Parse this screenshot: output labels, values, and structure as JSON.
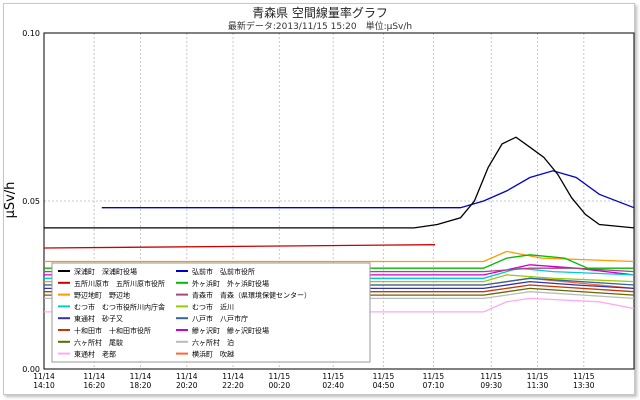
{
  "chart_data": {
    "type": "line",
    "title": "青森県 空間線量率グラフ",
    "subtitle": "最新データ:2013/11/15 15:20　単位:μSv/h",
    "ylabel": "μSv/h",
    "xlabel": "",
    "ylim": [
      0.0,
      0.1
    ],
    "xlim": [
      0,
      25.5
    ],
    "yticks": [
      "0.00",
      "0.05",
      "0.10"
    ],
    "xticks": [
      {
        "x": 0,
        "date": "11/14",
        "time": "14:10"
      },
      {
        "x": 2.17,
        "date": "11/14",
        "time": "16:20"
      },
      {
        "x": 4.17,
        "date": "11/14",
        "time": "18:20"
      },
      {
        "x": 6.17,
        "date": "11/14",
        "time": "20:20"
      },
      {
        "x": 8.17,
        "date": "11/14",
        "time": "22:20"
      },
      {
        "x": 10.17,
        "date": "11/15",
        "time": "00:20"
      },
      {
        "x": 12.5,
        "date": "11/15",
        "time": "02:40"
      },
      {
        "x": 14.67,
        "date": "11/15",
        "time": "04:50"
      },
      {
        "x": 16.83,
        "date": "11/15",
        "time": "07:10"
      },
      {
        "x": 19.33,
        "date": "11/15",
        "time": "09:30"
      },
      {
        "x": 21.33,
        "date": "11/15",
        "time": "11:30"
      },
      {
        "x": 23.33,
        "date": "11/15",
        "time": "13:30"
      }
    ],
    "grid": true,
    "legend_position": "bottom-left",
    "series": [
      {
        "name": "深浦町　深浦町役場",
        "color": "#000000",
        "points": [
          [
            0,
            0.042
          ],
          [
            16,
            0.042
          ],
          [
            17,
            0.043
          ],
          [
            18,
            0.045
          ],
          [
            18.6,
            0.05
          ],
          [
            19.2,
            0.06
          ],
          [
            19.8,
            0.067
          ],
          [
            20.4,
            0.069
          ],
          [
            21,
            0.066
          ],
          [
            21.6,
            0.063
          ],
          [
            22.2,
            0.058
          ],
          [
            22.8,
            0.051
          ],
          [
            23.4,
            0.046
          ],
          [
            24,
            0.043
          ],
          [
            25.5,
            0.042
          ]
        ]
      },
      {
        "name": "弘前市　弘前市役所",
        "color": "#0000cc",
        "points": [
          [
            2.5,
            0.048
          ],
          [
            17,
            0.048
          ],
          [
            18,
            0.048
          ],
          [
            19,
            0.05
          ],
          [
            20,
            0.053
          ],
          [
            21,
            0.057
          ],
          [
            22,
            0.059
          ],
          [
            23,
            0.057
          ],
          [
            24,
            0.052
          ],
          [
            25.5,
            0.048
          ]
        ]
      },
      {
        "name": "五所川原市　五所川原市役所",
        "color": "#cc0000",
        "points": [
          [
            0,
            0.036
          ],
          [
            16.9,
            0.037
          ]
        ]
      },
      {
        "name": "外ヶ浜町　外ヶ浜町役場",
        "color": "#00bb00",
        "points": [
          [
            0,
            0.03
          ],
          [
            19,
            0.03
          ],
          [
            20,
            0.033
          ],
          [
            21,
            0.034
          ],
          [
            22.5,
            0.033
          ],
          [
            23.5,
            0.03
          ],
          [
            25.5,
            0.03
          ]
        ]
      },
      {
        "name": "野辺地町　野辺地",
        "color": "#ff9900",
        "points": [
          [
            0,
            0.032
          ],
          [
            12,
            0.032
          ],
          [
            19,
            0.032
          ],
          [
            20,
            0.035
          ],
          [
            21.5,
            0.033
          ],
          [
            25.5,
            0.032
          ]
        ]
      },
      {
        "name": "青森市　青森（県環境保健センター）",
        "color": "#aa4488",
        "points": [
          [
            0,
            0.029
          ],
          [
            19,
            0.029
          ],
          [
            21,
            0.03
          ],
          [
            23,
            0.03
          ],
          [
            25.5,
            0.029
          ]
        ]
      },
      {
        "name": "むつ市　むつ市役所川内庁舎",
        "color": "#00cccc",
        "points": [
          [
            0,
            0.027
          ],
          [
            19,
            0.027
          ],
          [
            20.5,
            0.03
          ],
          [
            22,
            0.029
          ],
          [
            25.5,
            0.028
          ]
        ]
      },
      {
        "name": "むつ市　近川",
        "color": "#99cc00",
        "points": [
          [
            0,
            0.026
          ],
          [
            19,
            0.026
          ],
          [
            20,
            0.028
          ],
          [
            22,
            0.027
          ],
          [
            25.5,
            0.026
          ]
        ]
      },
      {
        "name": "東通村　砂子又",
        "color": "#3333aa",
        "points": [
          [
            0,
            0.024
          ],
          [
            19,
            0.024
          ],
          [
            21,
            0.026
          ],
          [
            23,
            0.025
          ],
          [
            25.5,
            0.024
          ]
        ]
      },
      {
        "name": "八戸市　八戸市庁",
        "color": "#336699",
        "points": [
          [
            0,
            0.025
          ],
          [
            19,
            0.025
          ],
          [
            21,
            0.027
          ],
          [
            25.5,
            0.025
          ]
        ]
      },
      {
        "name": "十和田市　十和田市役所",
        "color": "#cc3300",
        "points": [
          [
            0,
            0.023
          ],
          [
            19,
            0.023
          ],
          [
            21,
            0.025
          ],
          [
            25.5,
            0.023
          ]
        ]
      },
      {
        "name": "鰺ヶ沢町　鰺ヶ沢町役場",
        "color": "#cc00cc",
        "points": [
          [
            0,
            0.028
          ],
          [
            19,
            0.028
          ],
          [
            21,
            0.031
          ],
          [
            23,
            0.03
          ],
          [
            25.5,
            0.028
          ]
        ]
      },
      {
        "name": "六ヶ所村　尾駮",
        "color": "#666600",
        "points": [
          [
            0,
            0.022
          ],
          [
            19,
            0.022
          ],
          [
            21,
            0.024
          ],
          [
            25.5,
            0.022
          ]
        ]
      },
      {
        "name": "六ヶ所村　泊",
        "color": "#bbbbbb",
        "points": [
          [
            0,
            0.021
          ],
          [
            19,
            0.021
          ],
          [
            21,
            0.023
          ],
          [
            25.5,
            0.021
          ]
        ]
      },
      {
        "name": "東通村　老部",
        "color": "#ffaaee",
        "points": [
          [
            0,
            0.017
          ],
          [
            19,
            0.017
          ],
          [
            20,
            0.02
          ],
          [
            21,
            0.021
          ],
          [
            24,
            0.02
          ],
          [
            25.5,
            0.018
          ]
        ]
      },
      {
        "name": "横浜町　吹越",
        "color": "#ff6633",
        "points": [
          [
            0,
            0.025
          ],
          [
            19,
            0.025
          ],
          [
            21,
            0.027
          ],
          [
            25.5,
            0.024
          ]
        ]
      }
    ]
  }
}
